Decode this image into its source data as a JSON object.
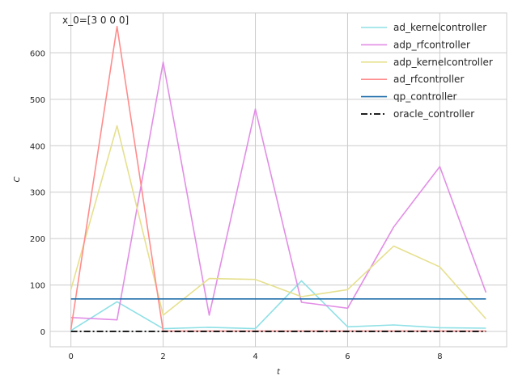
{
  "chart_data": {
    "type": "line",
    "title": "",
    "xlabel": "t",
    "ylabel": "C",
    "annotation": "x_0=[3 0 0 0]",
    "xlim": [
      -0.45,
      9.45
    ],
    "ylim": [
      -33,
      686
    ],
    "xticks": [
      0,
      2,
      4,
      6,
      8
    ],
    "yticks": [
      0,
      100,
      200,
      300,
      400,
      500,
      600
    ],
    "grid": true,
    "legend_position": "top-right",
    "x": [
      0,
      1,
      2,
      3,
      4,
      5,
      6,
      7,
      8,
      9
    ],
    "series": [
      {
        "name": "ad_kernelcontroller",
        "color": "#8ee0e6",
        "style": "solid",
        "values": [
          2,
          64,
          6,
          9,
          6,
          109,
          10,
          14,
          8,
          7
        ]
      },
      {
        "name": "adp_rfcontroller",
        "color": "#e28ee6",
        "style": "solid",
        "values": [
          30,
          25,
          580,
          35,
          479,
          63,
          50,
          225,
          355,
          84
        ]
      },
      {
        "name": "adp_kernelcontroller",
        "color": "#e6e08e",
        "style": "solid",
        "values": [
          90,
          443,
          35,
          114,
          112,
          75,
          90,
          184,
          139,
          27
        ]
      },
      {
        "name": "ad_rfcontroller",
        "color": "#ff8c8c",
        "style": "solid",
        "values": [
          4,
          657,
          1,
          1,
          1,
          1,
          1,
          1,
          1,
          1
        ]
      },
      {
        "name": "qp_controller",
        "color": "#1f6eaa",
        "style": "solid",
        "values": [
          70,
          70,
          70,
          70,
          70,
          70,
          70,
          70,
          70,
          70
        ]
      },
      {
        "name": "oracle_controller",
        "color": "#000000",
        "style": "dashdot",
        "values": [
          0,
          0,
          0,
          0,
          0,
          0,
          0,
          0,
          0,
          0
        ]
      }
    ]
  }
}
